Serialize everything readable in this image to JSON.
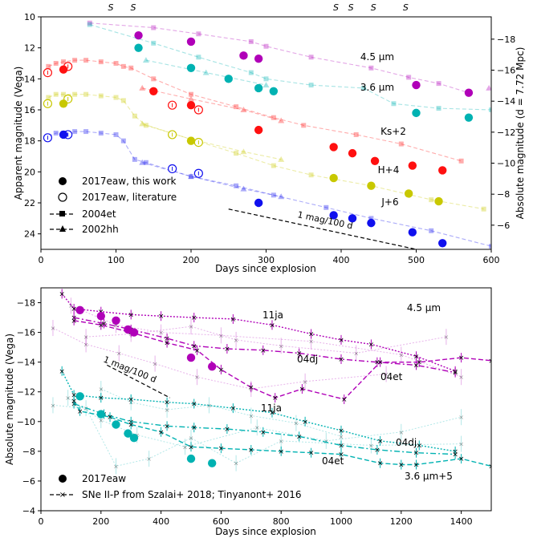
{
  "chart_data": [
    {
      "type": "scatter",
      "panel": "top",
      "xlabel": "Days since explosion",
      "ylabel": "Apparent magnitude (Vega)",
      "ylabel_right": "Absolute magnitude (d = 7.72 Mpc)",
      "xlim": [
        0,
        600
      ],
      "ylim": [
        25,
        10
      ],
      "ylim_right": [
        -4.44,
        -19.44
      ],
      "x_ticks": [
        0,
        100,
        200,
        300,
        400,
        500,
        600
      ],
      "y_ticks": [
        10,
        12,
        14,
        16,
        18,
        20,
        22,
        24
      ],
      "y_ticks_right": [
        -18,
        -16,
        -14,
        -12,
        -10,
        -8,
        -6
      ],
      "spitzer_marks": {
        "label": "S",
        "x": [
          93,
          123,
          393,
          413,
          443,
          486
        ]
      },
      "slope_annotation": {
        "label": "1 mag/100 d",
        "x": [
          250,
          500
        ],
        "y": [
          22.4,
          25.0
        ]
      },
      "legend": [
        "2017eaw, this work",
        "2017eaw, literature",
        "2004et",
        "2002hh"
      ],
      "series": [
        {
          "name": "4.5 μm",
          "color": "#b000b8",
          "this_work": [
            [
              130,
              11.2
            ],
            [
              200,
              11.6
            ],
            [
              270,
              12.5
            ],
            [
              290,
              12.7
            ],
            [
              500,
              14.4
            ],
            [
              570,
              14.9
            ]
          ],
          "literature": [],
          "sn2004et": [
            [
              65,
              10.4
            ],
            [
              150,
              10.7
            ],
            [
              210,
              11.1
            ],
            [
              280,
              11.6
            ],
            [
              300,
              11.9
            ],
            [
              360,
              12.6
            ],
            [
              440,
              13.3
            ],
            [
              490,
              13.9
            ],
            [
              530,
              14.3
            ],
            [
              570,
              14.9
            ]
          ],
          "sn2002hh": [
            [
              597,
              14.6
            ]
          ]
        },
        {
          "name": "3.6 μm",
          "color": "#00b2b2",
          "this_work": [
            [
              130,
              12.0
            ],
            [
              200,
              13.3
            ],
            [
              250,
              14.0
            ],
            [
              290,
              14.6
            ],
            [
              310,
              14.8
            ],
            [
              500,
              16.2
            ],
            [
              570,
              16.5
            ]
          ],
          "literature": [],
          "sn2004et": [
            [
              65,
              10.5
            ],
            [
              150,
              11.7
            ],
            [
              210,
              12.6
            ],
            [
              280,
              13.6
            ],
            [
              300,
              14.0
            ],
            [
              360,
              14.4
            ],
            [
              430,
              14.6
            ],
            [
              470,
              15.6
            ],
            [
              530,
              15.9
            ],
            [
              600,
              16.0
            ]
          ],
          "sn2002hh": [
            [
              140,
              12.8
            ],
            [
              220,
              13.6
            ],
            [
              300,
              14.4
            ]
          ]
        },
        {
          "name": "Ks+2",
          "color": "#ff1010",
          "this_work": [
            [
              30,
              13.4
            ],
            [
              150,
              14.8
            ],
            [
              200,
              15.7
            ],
            [
              290,
              17.3
            ],
            [
              390,
              18.4
            ],
            [
              415,
              18.8
            ],
            [
              445,
              19.3
            ],
            [
              495,
              19.6
            ],
            [
              535,
              19.9
            ]
          ],
          "literature": [
            [
              9,
              13.6
            ],
            [
              36,
              13.2
            ],
            [
              175,
              15.7
            ],
            [
              210,
              16.0
            ]
          ],
          "sn2004et": [
            [
              10,
              13.2
            ],
            [
              20,
              13.0
            ],
            [
              30,
              12.9
            ],
            [
              45,
              12.8
            ],
            [
              60,
              12.8
            ],
            [
              80,
              12.9
            ],
            [
              100,
              13.0
            ],
            [
              110,
              13.2
            ],
            [
              120,
              13.3
            ],
            [
              150,
              14.0
            ],
            [
              200,
              15.0
            ],
            [
              260,
              15.8
            ],
            [
              310,
              16.5
            ],
            [
              350,
              17.0
            ],
            [
              420,
              17.6
            ],
            [
              480,
              18.2
            ],
            [
              560,
              19.3
            ]
          ],
          "sn2002hh": [
            [
              135,
              14.6
            ],
            [
              200,
              15.3
            ],
            [
              270,
              16.0
            ],
            [
              320,
              16.7
            ]
          ]
        },
        {
          "name": "H+4",
          "color": "#c8c800",
          "this_work": [
            [
              30,
              15.6
            ],
            [
              200,
              18.0
            ],
            [
              390,
              20.4
            ],
            [
              440,
              20.9
            ],
            [
              490,
              21.4
            ],
            [
              530,
              21.9
            ]
          ],
          "literature": [
            [
              9,
              15.6
            ],
            [
              36,
              15.3
            ],
            [
              175,
              17.6
            ],
            [
              210,
              18.1
            ]
          ],
          "sn2004et": [
            [
              10,
              15.2
            ],
            [
              20,
              15.0
            ],
            [
              30,
              15.0
            ],
            [
              45,
              15.0
            ],
            [
              60,
              15.0
            ],
            [
              80,
              15.1
            ],
            [
              100,
              15.2
            ],
            [
              110,
              15.4
            ],
            [
              125,
              16.4
            ],
            [
              140,
              17.0
            ],
            [
              200,
              17.9
            ],
            [
              260,
              18.8
            ],
            [
              310,
              19.6
            ],
            [
              360,
              20.2
            ],
            [
              440,
              20.9
            ],
            [
              520,
              21.8
            ],
            [
              590,
              22.4
            ]
          ],
          "sn2002hh": [
            [
              135,
              16.9
            ],
            [
              200,
              17.9
            ],
            [
              270,
              18.7
            ],
            [
              320,
              19.2
            ]
          ]
        },
        {
          "name": "J+6",
          "color": "#1010ee",
          "this_work": [
            [
              30,
              17.6
            ],
            [
              290,
              22.0
            ],
            [
              390,
              22.8
            ],
            [
              415,
              23.0
            ],
            [
              440,
              23.3
            ],
            [
              495,
              23.9
            ],
            [
              535,
              24.6
            ]
          ],
          "literature": [
            [
              9,
              17.8
            ],
            [
              36,
              17.6
            ],
            [
              175,
              19.8
            ],
            [
              210,
              20.1
            ]
          ],
          "sn2004et": [
            [
              10,
              17.7
            ],
            [
              20,
              17.5
            ],
            [
              30,
              17.5
            ],
            [
              45,
              17.4
            ],
            [
              60,
              17.4
            ],
            [
              80,
              17.5
            ],
            [
              100,
              17.6
            ],
            [
              110,
              18.0
            ],
            [
              125,
              19.2
            ],
            [
              140,
              19.4
            ],
            [
              200,
              20.3
            ],
            [
              260,
              20.9
            ],
            [
              310,
              21.5
            ],
            [
              380,
              22.3
            ],
            [
              440,
              23.0
            ],
            [
              520,
              23.8
            ],
            [
              600,
              24.8
            ]
          ],
          "sn2002hh": [
            [
              135,
              19.4
            ],
            [
              200,
              20.3
            ],
            [
              270,
              21.1
            ],
            [
              320,
              21.6
            ]
          ]
        }
      ]
    },
    {
      "type": "scatter",
      "panel": "bottom",
      "xlabel": "Days since explosion",
      "ylabel": "Absolute magnitude (Vega)",
      "xlim": [
        0,
        1500
      ],
      "ylim": [
        -4,
        -19
      ],
      "x_ticks": [
        0,
        200,
        400,
        600,
        800,
        1000,
        1200,
        1400
      ],
      "y_ticks": [
        -4,
        -6,
        -8,
        -10,
        -12,
        -14,
        -16,
        -18
      ],
      "slope_annotation": {
        "label": "1 mag/100 d",
        "x": [
          220,
          430
        ],
        "y": [
          -13.8,
          -11.6
        ]
      },
      "legend": [
        "2017eaw",
        "SNe II-P from Szalai+ 2018; Tinyanont+ 2016"
      ],
      "annotations": [
        "11ja",
        "04dj",
        "04et",
        "11ja",
        "04dj",
        "04et"
      ],
      "series": [
        {
          "name": "4.5 μm",
          "color": "#b000b8",
          "sn2017eaw": [
            [
              130,
              -17.5
            ],
            [
              200,
              -17.1
            ],
            [
              250,
              -16.8
            ],
            [
              290,
              -16.2
            ],
            [
              310,
              -16.0
            ],
            [
              500,
              -14.3
            ],
            [
              570,
              -13.7
            ]
          ],
          "sn2011ja": [
            [
              70,
              -18.6
            ],
            [
              110,
              -17.6
            ],
            [
              200,
              -17.4
            ],
            [
              300,
              -17.2
            ],
            [
              400,
              -17.1
            ],
            [
              510,
              -17.0
            ],
            [
              640,
              -16.9
            ],
            [
              770,
              -16.5
            ],
            [
              900,
              -15.9
            ],
            [
              1000,
              -15.5
            ],
            [
              1100,
              -15.2
            ],
            [
              1250,
              -14.4
            ],
            [
              1380,
              -13.4
            ]
          ],
          "sn2004dj": [
            [
              110,
              -17.0
            ],
            [
              210,
              -16.6
            ],
            [
              300,
              -16.2
            ],
            [
              420,
              -15.6
            ],
            [
              510,
              -15.1
            ],
            [
              620,
              -14.9
            ],
            [
              740,
              -14.8
            ],
            [
              860,
              -14.6
            ],
            [
              1000,
              -14.2
            ],
            [
              1120,
              -14.0
            ],
            [
              1250,
              -13.8
            ],
            [
              1380,
              -13.3
            ]
          ],
          "sn2004et": [
            [
              110,
              -16.8
            ],
            [
              200,
              -16.5
            ],
            [
              300,
              -16.0
            ],
            [
              420,
              -15.3
            ],
            [
              520,
              -14.8
            ],
            [
              600,
              -13.5
            ],
            [
              700,
              -12.3
            ],
            [
              780,
              -11.6
            ],
            [
              870,
              -12.2
            ],
            [
              1010,
              -11.5
            ],
            [
              1130,
              -14.0
            ],
            [
              1260,
              -14.0
            ],
            [
              1400,
              -14.3
            ],
            [
              1500,
              -14.1
            ]
          ]
        },
        {
          "name": "3.6 μm+5",
          "color": "#00b2b2",
          "sn2017eaw": [
            [
              130,
              -11.7
            ],
            [
              200,
              -10.5
            ],
            [
              250,
              -9.8
            ],
            [
              290,
              -9.2
            ],
            [
              310,
              -8.9
            ],
            [
              500,
              -7.5
            ],
            [
              570,
              -7.2
            ]
          ],
          "sn2011ja": [
            [
              70,
              -13.4
            ],
            [
              110,
              -11.8
            ],
            [
              200,
              -11.6
            ],
            [
              300,
              -11.5
            ],
            [
              420,
              -11.3
            ],
            [
              510,
              -11.2
            ],
            [
              640,
              -10.9
            ],
            [
              770,
              -10.6
            ],
            [
              880,
              -10.0
            ],
            [
              1000,
              -9.4
            ],
            [
              1130,
              -8.7
            ],
            [
              1260,
              -8.4
            ],
            [
              1380,
              -8.0
            ]
          ],
          "sn2004dj": [
            [
              110,
              -11.2
            ],
            [
              210,
              -10.5
            ],
            [
              300,
              -10.0
            ],
            [
              420,
              -9.7
            ],
            [
              510,
              -9.6
            ],
            [
              620,
              -9.5
            ],
            [
              740,
              -9.3
            ],
            [
              860,
              -9.0
            ],
            [
              1000,
              -8.4
            ],
            [
              1120,
              -8.1
            ],
            [
              1250,
              -7.9
            ],
            [
              1380,
              -7.8
            ]
          ],
          "sn2004et": [
            [
              110,
              -11.4
            ],
            [
              130,
              -10.7
            ],
            [
              230,
              -10.3
            ],
            [
              300,
              -9.8
            ],
            [
              400,
              -9.3
            ],
            [
              500,
              -8.3
            ],
            [
              600,
              -8.2
            ],
            [
              700,
              -8.1
            ],
            [
              800,
              -8.0
            ],
            [
              900,
              -7.9
            ],
            [
              1000,
              -7.8
            ],
            [
              1130,
              -7.2
            ],
            [
              1200,
              -7.1
            ],
            [
              1250,
              -7.1
            ],
            [
              1400,
              -7.5
            ],
            [
              1500,
              -7.0
            ]
          ]
        }
      ]
    }
  ]
}
